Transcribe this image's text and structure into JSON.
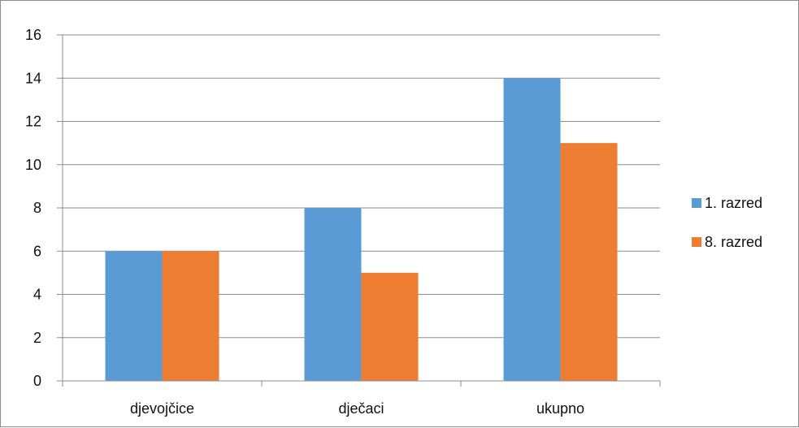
{
  "chart_data": {
    "type": "bar",
    "categories": [
      "djevojčice",
      "dječaci",
      "ukupno"
    ],
    "series": [
      {
        "name": "1. razred",
        "values": [
          6,
          8,
          14
        ],
        "color": "#5B9BD5"
      },
      {
        "name": "8. razred",
        "values": [
          6,
          5,
          11
        ],
        "color": "#ED7D31"
      }
    ],
    "ylim": [
      0,
      16
    ],
    "yticks": [
      0,
      2,
      4,
      6,
      8,
      10,
      12,
      14,
      16
    ],
    "grid": true,
    "legend_position": "right",
    "title": "",
    "xlabel": "",
    "ylabel": ""
  }
}
